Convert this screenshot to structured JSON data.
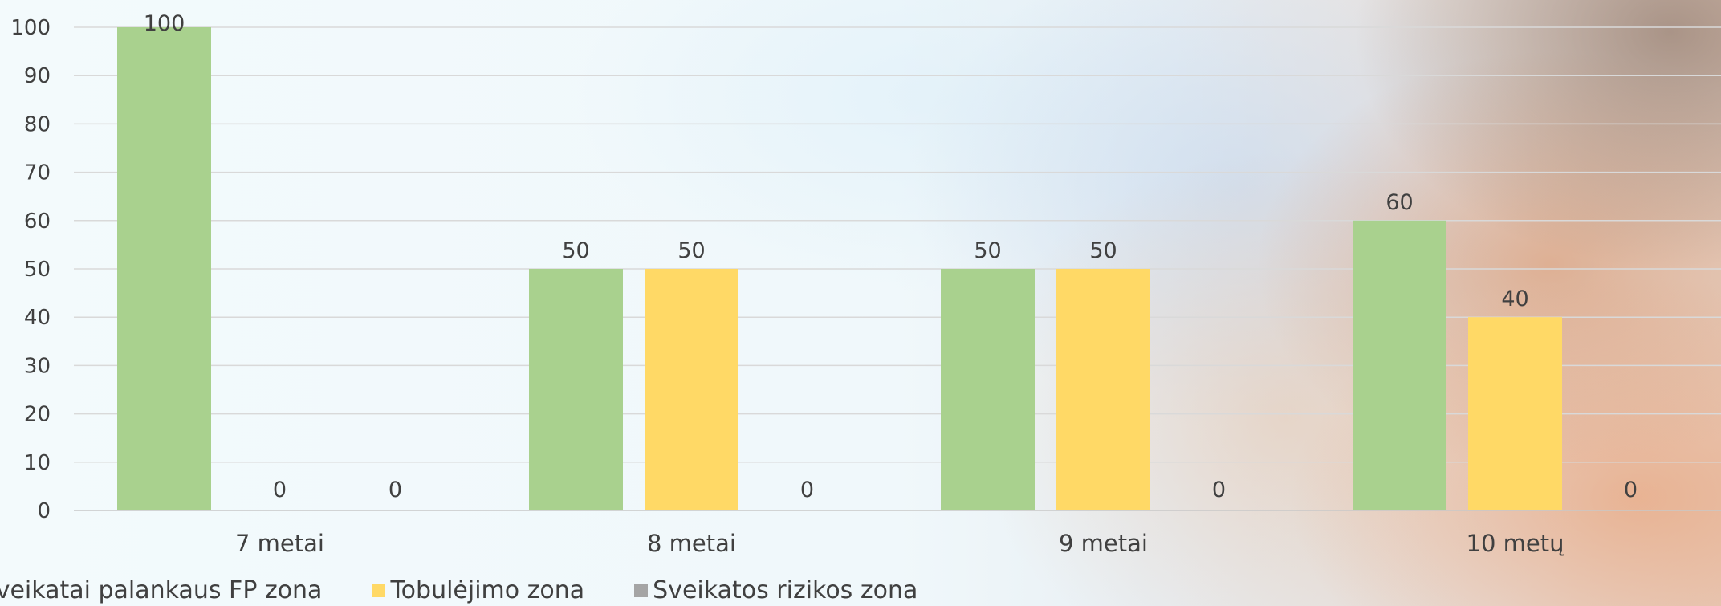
{
  "chart_data": {
    "type": "bar",
    "categories": [
      "7 metai",
      "8 metai",
      "9 metai",
      "10 metų"
    ],
    "series": [
      {
        "name": "Sveikatai palankaus FP zona",
        "color": "#a9d18e",
        "values": [
          100,
          50,
          50,
          60
        ]
      },
      {
        "name": "Tobulėjimo zona",
        "color": "#ffd966",
        "values": [
          0,
          50,
          50,
          40
        ]
      },
      {
        "name": "Sveikatos rizikos zona",
        "color": "#a5a5a5",
        "values": [
          0,
          0,
          0,
          0
        ]
      }
    ],
    "ylim": [
      0,
      100
    ],
    "yticks": [
      0,
      10,
      20,
      30,
      40,
      50,
      60,
      70,
      80,
      90,
      100
    ],
    "grid": true,
    "legend_position": "bottom",
    "data_labels": true
  }
}
